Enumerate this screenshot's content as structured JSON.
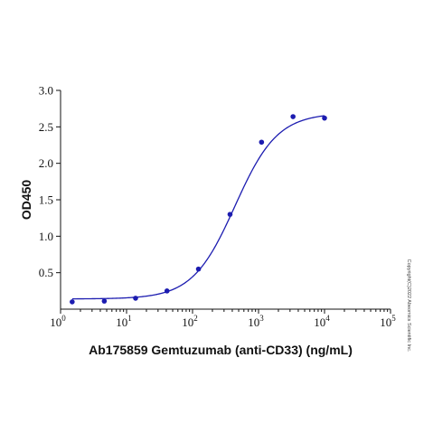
{
  "chart_data": {
    "type": "scatter",
    "xlabel": "Ab175859 Gemtuzumab (anti-CD33) (ng/mL)",
    "ylabel": "OD450",
    "x_scale": "log",
    "xlim": [
      1,
      100000
    ],
    "ylim": [
      0,
      3.0
    ],
    "x_ticks": [
      {
        "value": 1,
        "base": "10",
        "exp": "0"
      },
      {
        "value": 10,
        "base": "10",
        "exp": "1"
      },
      {
        "value": 100,
        "base": "10",
        "exp": "2"
      },
      {
        "value": 1000,
        "base": "10",
        "exp": "3"
      },
      {
        "value": 10000,
        "base": "10",
        "exp": "4"
      },
      {
        "value": 100000,
        "base": "10",
        "exp": "5"
      }
    ],
    "y_ticks": [
      {
        "value": 0.5,
        "label": "0.5"
      },
      {
        "value": 1.0,
        "label": "1.0"
      },
      {
        "value": 1.5,
        "label": "1.5"
      },
      {
        "value": 2.0,
        "label": "2.0"
      },
      {
        "value": 2.5,
        "label": "2.5"
      },
      {
        "value": 3.0,
        "label": "3.0"
      }
    ],
    "grid": false,
    "series": [
      {
        "x": [
          1.5,
          4.6,
          13.7,
          41,
          123,
          370,
          1111,
          3333,
          10000
        ],
        "y": [
          0.1,
          0.11,
          0.15,
          0.25,
          0.55,
          1.3,
          2.29,
          2.64,
          2.62
        ]
      }
    ],
    "fit": {
      "model": "4PL",
      "bottom": 0.14,
      "top": 2.69,
      "ec50": 440,
      "hill": 1.35,
      "x_range": [
        1.5,
        10000
      ]
    }
  },
  "copyright": "Copyright(C)2022 Abeomics Scientific Inc.",
  "colors": {
    "series": "#1c1cb0",
    "axis": "#111111"
  }
}
